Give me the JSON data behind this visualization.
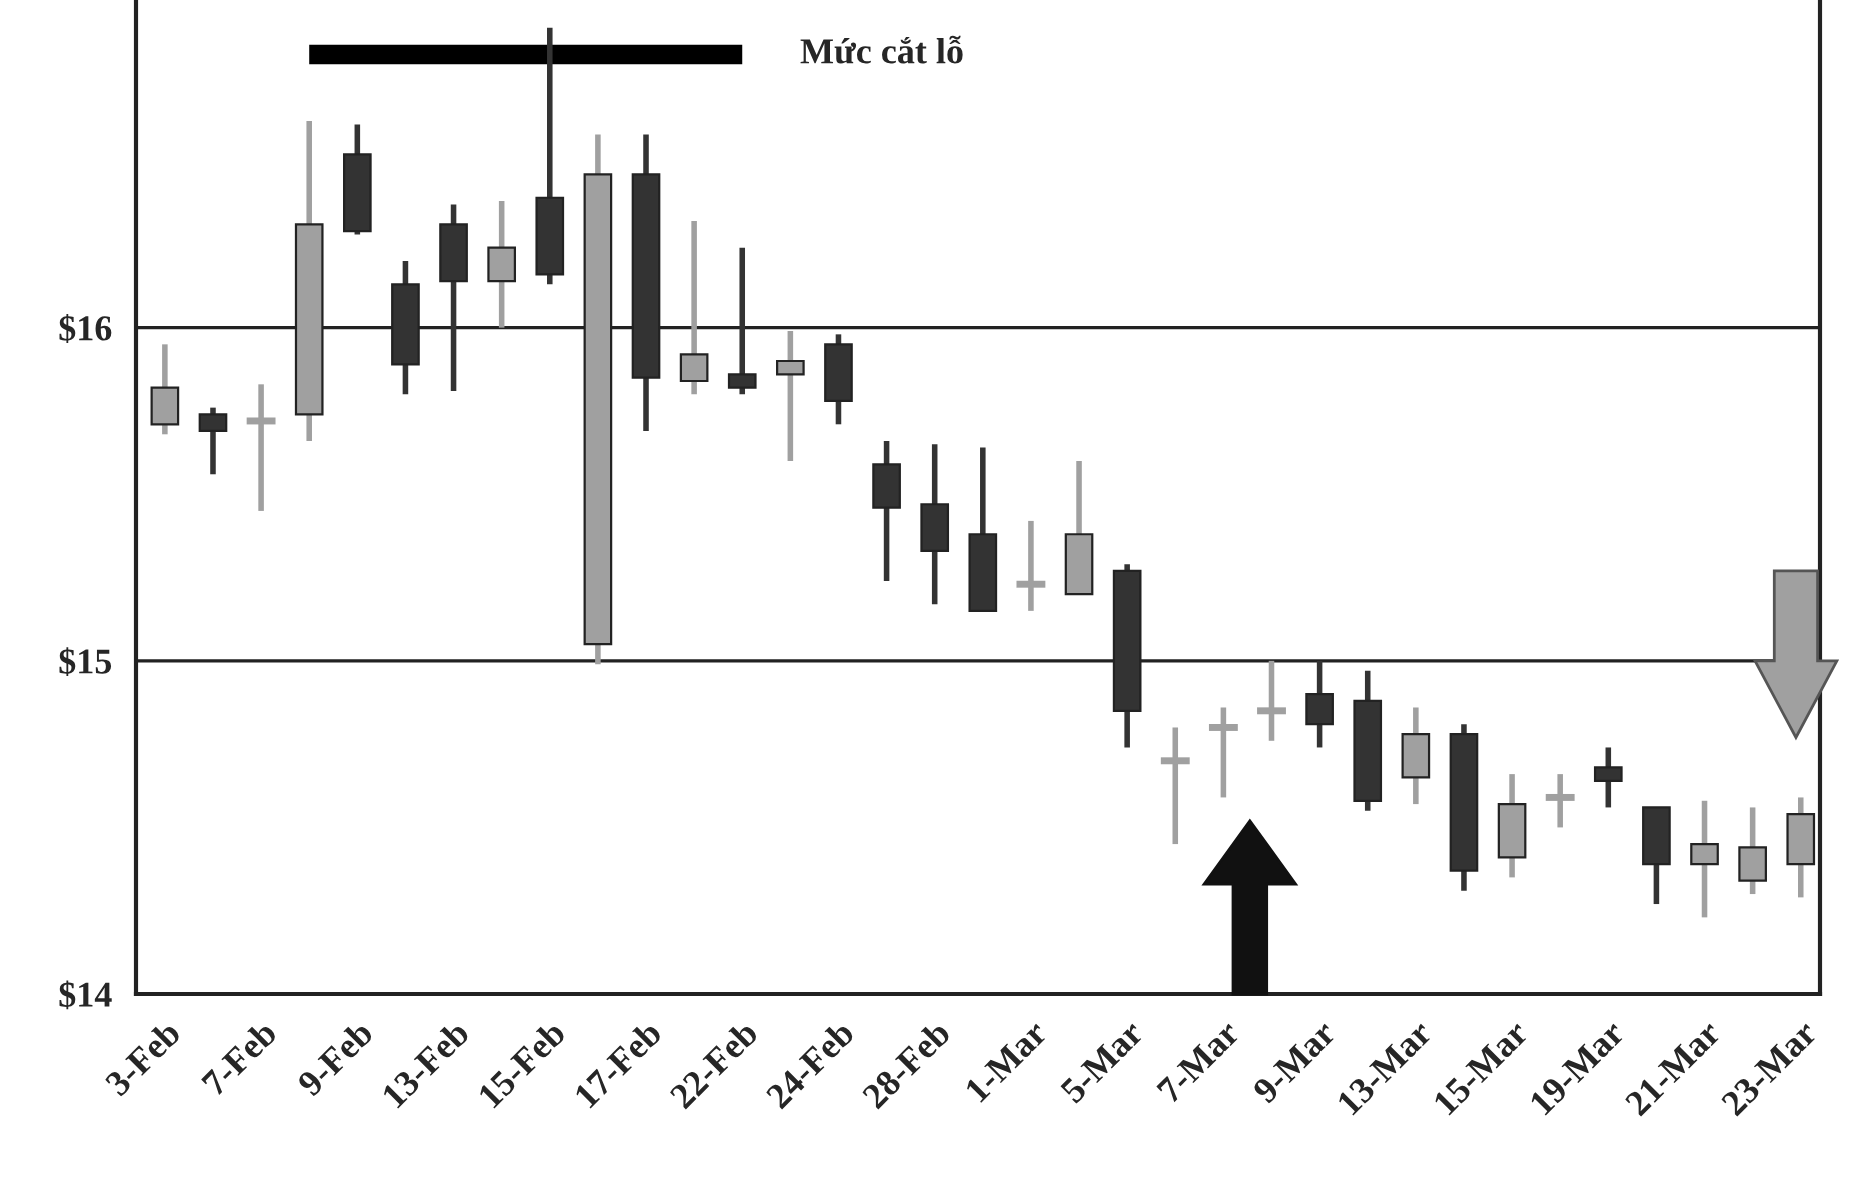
{
  "chart_data": {
    "type": "candlestick",
    "categories": [
      "3-Feb",
      null,
      "7-Feb",
      null,
      "9-Feb",
      null,
      "13-Feb",
      null,
      "15-Feb",
      null,
      "17-Feb",
      null,
      "22-Feb",
      null,
      "24-Feb",
      null,
      "28-Feb",
      null,
      "1-Mar",
      null,
      "5-Mar",
      null,
      "7-Mar",
      null,
      "9-Mar",
      null,
      "13-Mar",
      null,
      "15-Mar",
      null,
      "19-Mar",
      null,
      "21-Mar",
      null,
      "23-Mar"
    ],
    "ohlc": [
      [
        15.71,
        15.95,
        15.68,
        15.82
      ],
      [
        15.74,
        15.76,
        15.56,
        15.69
      ],
      [
        15.72,
        15.83,
        15.45,
        15.72
      ],
      [
        15.74,
        16.62,
        15.66,
        16.31
      ],
      [
        16.52,
        16.61,
        16.28,
        16.29
      ],
      [
        16.13,
        16.2,
        15.8,
        15.89
      ],
      [
        16.31,
        16.37,
        15.81,
        16.14
      ],
      [
        16.14,
        16.38,
        16.0,
        16.24
      ],
      [
        16.39,
        16.9,
        16.13,
        16.16
      ],
      [
        15.05,
        16.58,
        14.99,
        16.46
      ],
      [
        16.46,
        16.58,
        15.69,
        15.85
      ],
      [
        15.84,
        16.32,
        15.8,
        15.92
      ],
      [
        15.86,
        16.24,
        15.8,
        15.82
      ],
      [
        15.86,
        15.99,
        15.6,
        15.9
      ],
      [
        15.95,
        15.98,
        15.71,
        15.78
      ],
      [
        15.59,
        15.66,
        15.24,
        15.46
      ],
      [
        15.47,
        15.65,
        15.17,
        15.33
      ],
      [
        15.38,
        15.64,
        15.15,
        15.15
      ],
      [
        15.23,
        15.42,
        15.15,
        15.23
      ],
      [
        15.2,
        15.6,
        15.2,
        15.38
      ],
      [
        15.27,
        15.29,
        14.74,
        14.85
      ],
      [
        14.7,
        14.8,
        14.45,
        14.7
      ],
      [
        14.8,
        14.86,
        14.59,
        14.8
      ],
      [
        14.85,
        15.0,
        14.76,
        14.85
      ],
      [
        14.9,
        15.0,
        14.74,
        14.81
      ],
      [
        14.88,
        14.97,
        14.55,
        14.58
      ],
      [
        14.65,
        14.86,
        14.57,
        14.78
      ],
      [
        14.78,
        14.81,
        14.31,
        14.37
      ],
      [
        14.41,
        14.66,
        14.35,
        14.57
      ],
      [
        14.59,
        14.66,
        14.5,
        14.59
      ],
      [
        14.68,
        14.74,
        14.56,
        14.64
      ],
      [
        14.56,
        14.56,
        14.27,
        14.39
      ],
      [
        14.39,
        14.58,
        14.23,
        14.45
      ],
      [
        14.34,
        14.56,
        14.3,
        14.44
      ],
      [
        14.39,
        14.59,
        14.29,
        14.54
      ]
    ],
    "colors": [
      "#a0a0a0",
      "#333333",
      "#a0a0a0",
      "#a0a0a0",
      "#333333",
      "#333333",
      "#333333",
      "#a0a0a0",
      "#333333",
      "#a0a0a0",
      "#333333",
      "#a0a0a0",
      "#333333",
      "#a0a0a0",
      "#333333",
      "#333333",
      "#333333",
      "#333333",
      "#a0a0a0",
      "#a0a0a0",
      "#333333",
      "#a0a0a0",
      "#a0a0a0",
      "#a0a0a0",
      "#333333",
      "#333333",
      "#a0a0a0",
      "#333333",
      "#a0a0a0",
      "#a0a0a0",
      "#333333",
      "#333333",
      "#a0a0a0",
      "#a0a0a0",
      "#a0a0a0"
    ],
    "series": [
      {
        "type": "line",
        "name": "Mức cắt lỗ",
        "color": "#000000",
        "values": [
          null,
          null,
          null,
          16.82,
          16.82,
          16.82,
          16.82,
          16.82,
          16.82,
          16.82,
          16.82,
          16.82,
          16.82,
          null,
          null,
          null,
          null,
          null,
          null,
          null,
          null,
          null,
          null,
          null,
          null,
          null,
          null,
          null,
          null,
          null,
          null,
          null,
          null,
          null,
          null
        ]
      }
    ],
    "ylim": [
      14,
      16.98
    ],
    "yticks": [
      {
        "value": 14,
        "label": "$14"
      },
      {
        "value": 15,
        "label": "$15"
      },
      {
        "value": 16,
        "label": "$16"
      }
    ],
    "grid": "y",
    "legend": false
  }
}
